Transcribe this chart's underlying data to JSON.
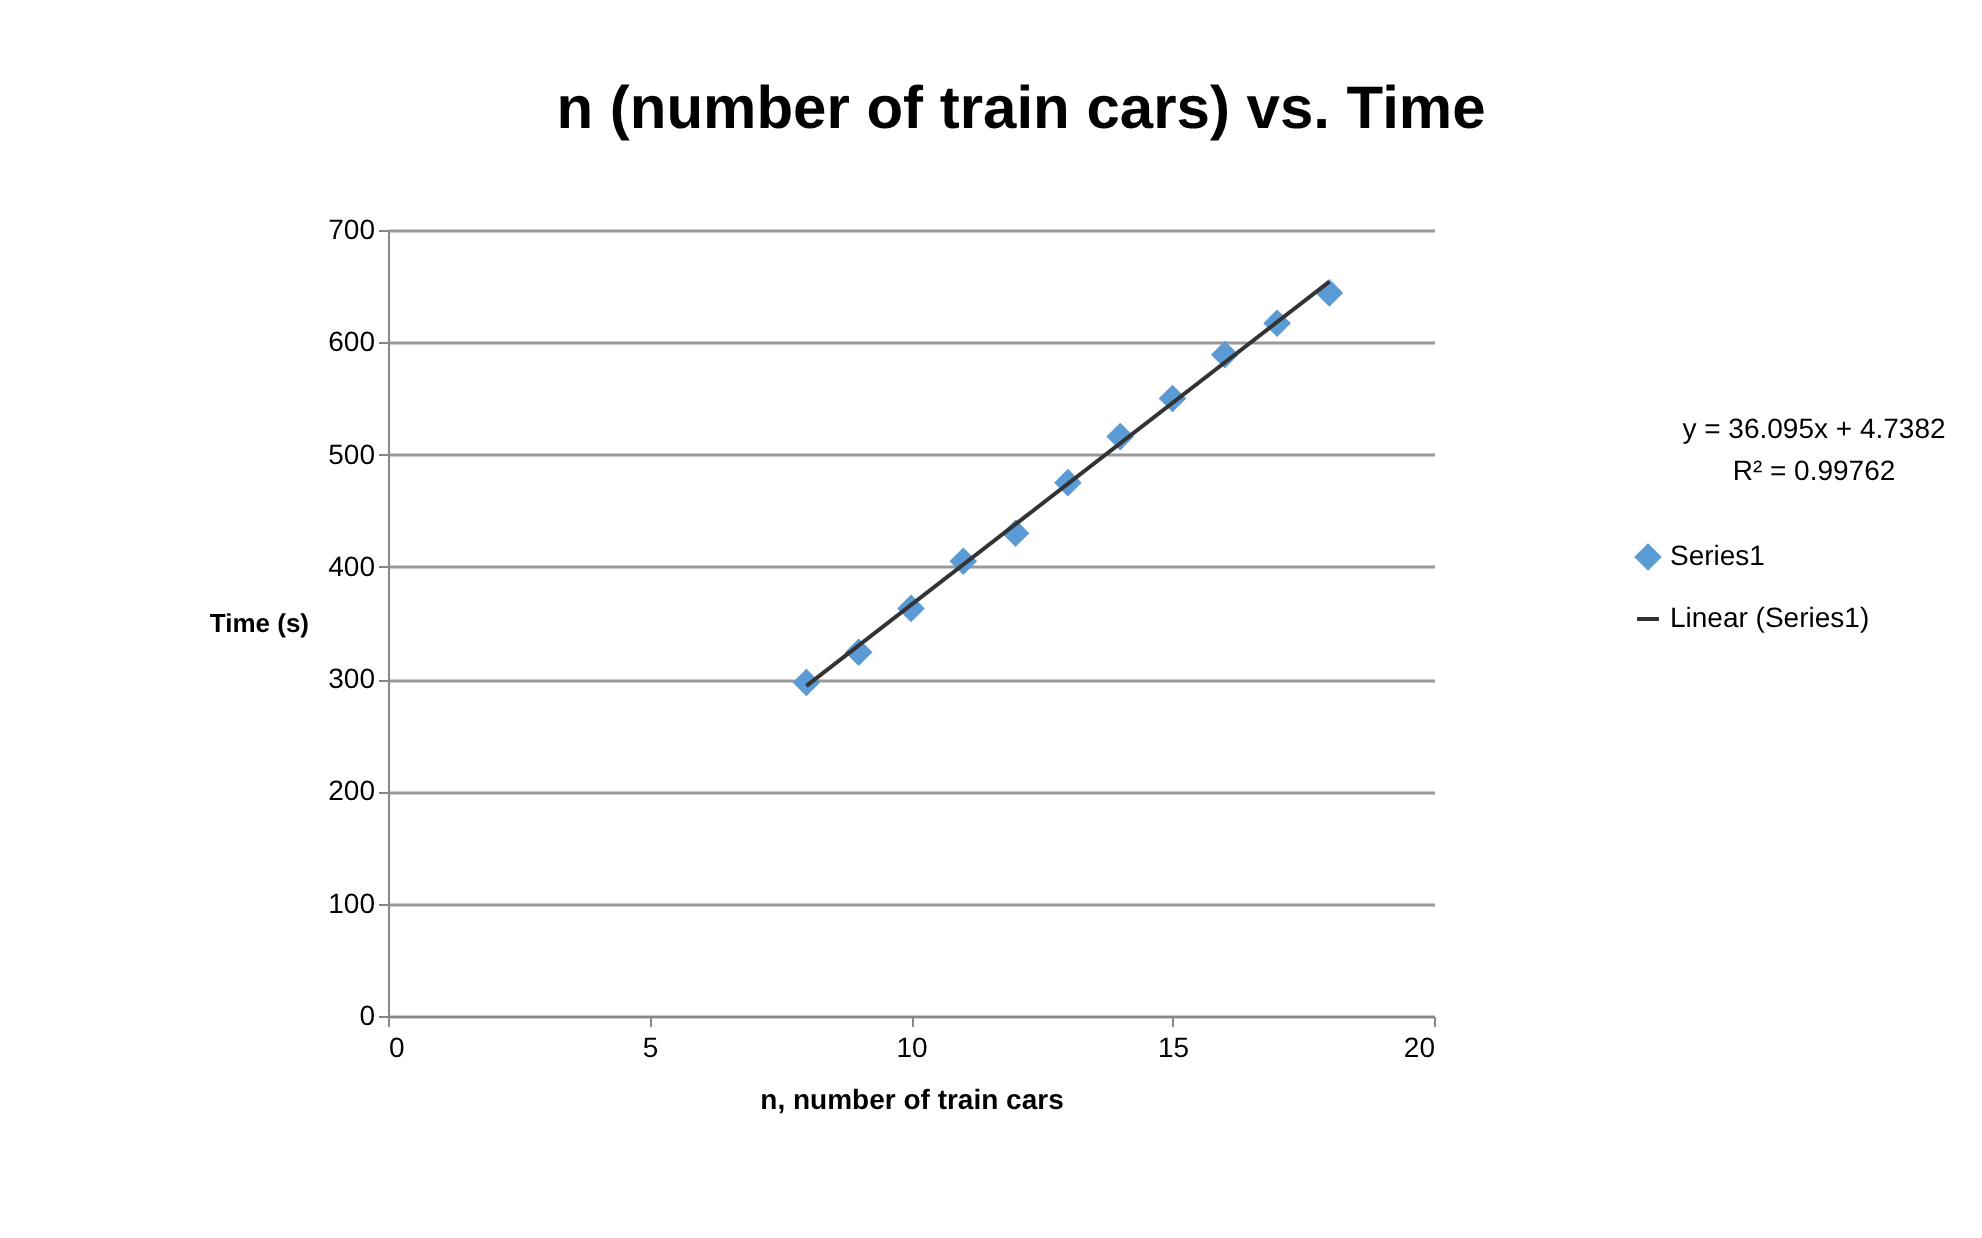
{
  "chart_data": {
    "type": "scatter",
    "title": "n (number of train cars) vs. Time",
    "xlabel": "n, number of train cars",
    "ylabel": "Time (s)",
    "x": [
      8,
      9,
      10,
      11,
      12,
      13,
      14,
      15,
      16,
      17,
      18
    ],
    "series": [
      {
        "name": "Series1",
        "color": "#5b9bd5",
        "values": [
          297,
          324,
          363,
          405,
          430,
          475,
          516,
          550,
          589,
          617,
          644
        ],
        "marker": "diamond"
      },
      {
        "name": "Linear (Series1)",
        "type": "line",
        "color": "#333333",
        "x": [
          8,
          18
        ],
        "values": [
          294,
          654
        ],
        "line_style": "solid",
        "marker": "none"
      }
    ],
    "xlim": [
      0,
      20
    ],
    "xticks": [
      0,
      5,
      10,
      15,
      20
    ],
    "ylim": [
      0,
      700
    ],
    "yticks": [
      0,
      100,
      200,
      300,
      400,
      500,
      600,
      700
    ],
    "grid": "y",
    "legend": "right",
    "annotations": [
      "y = 36.095x + 4.7382",
      "R² = 0.99762"
    ]
  }
}
